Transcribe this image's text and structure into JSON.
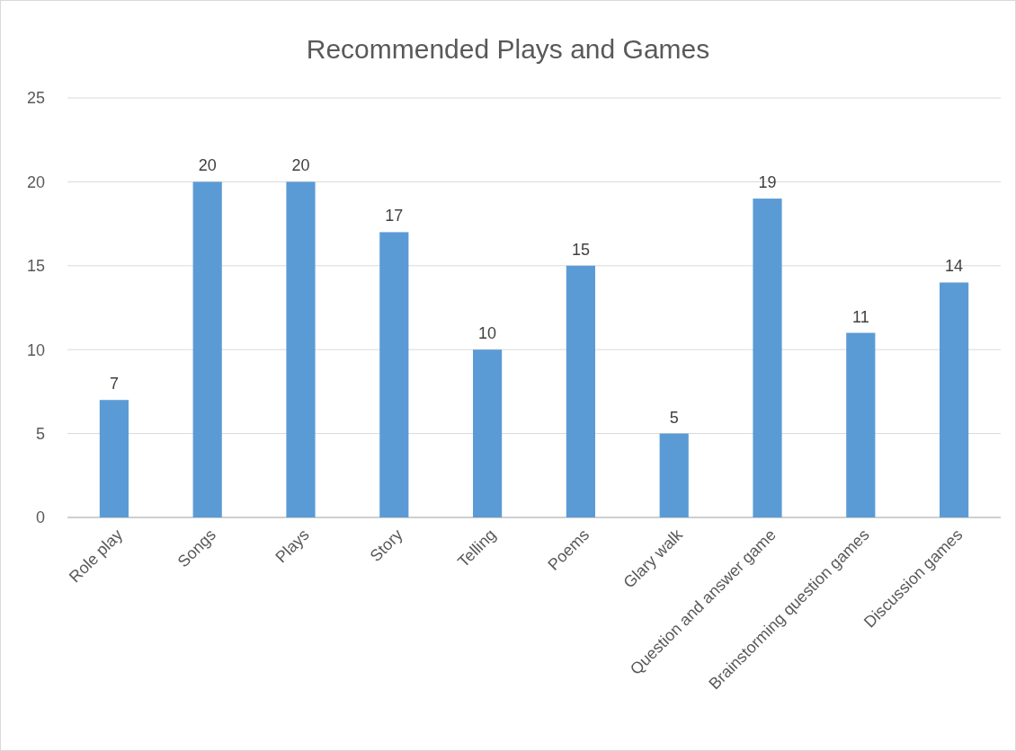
{
  "chart_data": {
    "type": "bar",
    "title": "Recommended Plays and Games",
    "categories": [
      "Role play",
      "Songs",
      "Plays",
      "Story",
      "Telling",
      "Poems",
      "Glary walk",
      "Question and answer game",
      "Brainstorming question games",
      "Discussion games"
    ],
    "values": [
      7,
      20,
      20,
      17,
      10,
      15,
      5,
      19,
      11,
      14
    ],
    "color": "#5b9bd5",
    "ylim": [
      0,
      25
    ],
    "yticks": [
      0,
      5,
      10,
      15,
      20,
      25
    ],
    "grid": "y",
    "data_labels": true
  }
}
